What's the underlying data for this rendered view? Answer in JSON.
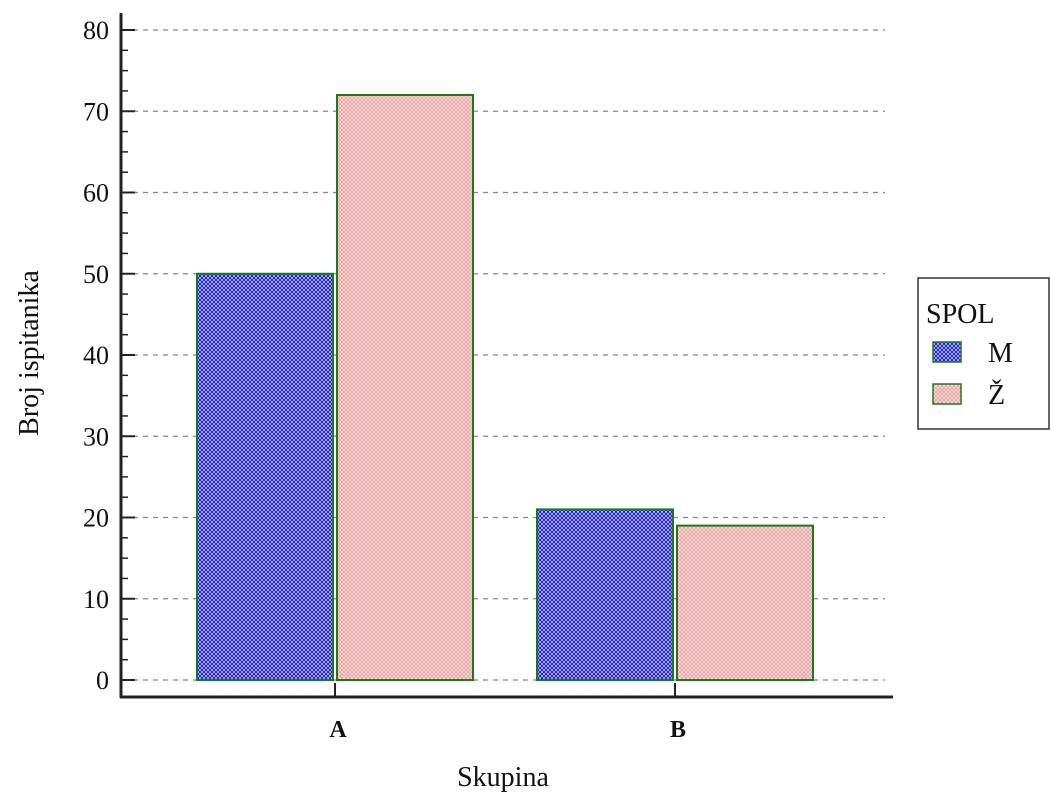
{
  "chart_data": {
    "type": "bar",
    "title": "",
    "xlabel": "Skupina",
    "ylabel": "Broj ispitanika",
    "categories": [
      "A",
      "B"
    ],
    "series": [
      {
        "name": "M",
        "values": [
          50,
          21
        ],
        "color": "#2222dd",
        "pattern": "crosshatch-blue"
      },
      {
        "name": "Ž",
        "values": [
          72,
          19
        ],
        "color": "#f2a0a0",
        "pattern": "crosshatch-pink"
      }
    ],
    "ylim": [
      0,
      80
    ],
    "yticks": [
      0,
      10,
      20,
      30,
      40,
      50,
      60,
      70,
      80
    ],
    "grid": true,
    "bar_border_color": "#1a7a1a",
    "legend": {
      "title": "SPOL",
      "placement": "right"
    }
  }
}
